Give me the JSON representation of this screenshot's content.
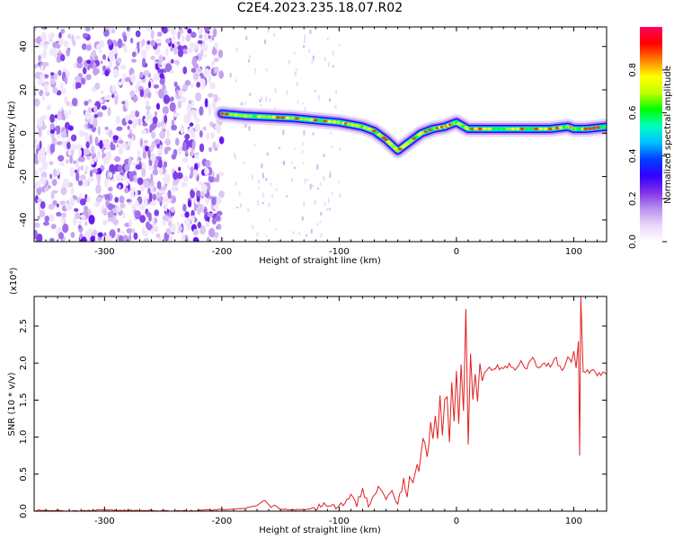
{
  "page": {
    "title": "C2E4.2023.235.18.07.R02"
  },
  "chart_data": [
    {
      "type": "heatmap",
      "panel": "top",
      "xlabel": "Height of straight line (km)",
      "ylabel": "Frequency (Hz)",
      "xlim": [
        -360,
        128
      ],
      "ylim": [
        -50,
        49
      ],
      "xticks": [
        -300,
        -200,
        -100,
        0,
        100
      ],
      "yticks": [
        -40,
        -20,
        0,
        20,
        40
      ],
      "colorbar": {
        "label": "Normalized spectral amplitude",
        "range": [
          0,
          1
        ],
        "ticks": [
          "0.0",
          "0.2",
          "0.4",
          "0.6",
          "0.8"
        ],
        "tick_values": [
          0,
          0.2,
          0.4,
          0.6,
          0.8
        ],
        "colormap": [
          "#ffffff",
          "#e8d8f8",
          "#b890ee",
          "#8030e8",
          "#3000ff",
          "#0040ff",
          "#00c0ff",
          "#00ffc0",
          "#00ff00",
          "#c0ff00",
          "#ffff00",
          "#ff8000",
          "#ff0000",
          "#ff0060"
        ]
      },
      "noise_region_x": [
        -360,
        -200
      ],
      "signal_trace": {
        "x": [
          -200,
          -180,
          -160,
          -140,
          -120,
          -100,
          -90,
          -80,
          -70,
          -60,
          -50,
          -40,
          -30,
          -20,
          -10,
          -5,
          0,
          10,
          20,
          40,
          60,
          80,
          95,
          100,
          110,
          128
        ],
        "y": [
          9,
          8,
          7.5,
          7,
          6,
          5,
          4,
          3,
          1,
          -3,
          -8,
          -4,
          0,
          2,
          3,
          4,
          5,
          2,
          2,
          2,
          2,
          2,
          3,
          2,
          2,
          3
        ]
      }
    },
    {
      "type": "line",
      "panel": "bottom",
      "xlabel": "Height of straight line (km)",
      "ylabel": "SNR (10 * v/v)",
      "y_multiplier": "(x10⁴)",
      "xlim": [
        -360,
        128
      ],
      "ylim": [
        0,
        2.9
      ],
      "xticks": [
        -300,
        -200,
        -100,
        0,
        100
      ],
      "yticks": [
        "0.0",
        "0.5",
        "1.0",
        "1.5",
        "2.0",
        "2.5"
      ],
      "ytick_values": [
        0,
        0.5,
        1.0,
        1.5,
        2.0,
        2.5
      ],
      "color": "#e02020",
      "series": [
        {
          "x": [
            -360,
            -340,
            -320,
            -300,
            -280,
            -260,
            -240,
            -220,
            -200,
            -180,
            -170,
            -163,
            -158,
            -155,
            -150,
            -140,
            -130,
            -120,
            -110,
            -100,
            -95,
            -90,
            -85,
            -80,
            -75,
            -70,
            -65,
            -60,
            -55,
            -50,
            -45,
            -42,
            -40,
            -37,
            -35,
            -32,
            -30,
            -27,
            -25,
            -22,
            -20,
            -18,
            -16,
            -14,
            -12,
            -10,
            -8,
            -6,
            -4,
            -2,
            0,
            2,
            4,
            6,
            8,
            10,
            12,
            14,
            16,
            18,
            20,
            22,
            24,
            26,
            28,
            30,
            35,
            40,
            45,
            50,
            55,
            60,
            65,
            70,
            75,
            80,
            85,
            90,
            95,
            98,
            100,
            102,
            104,
            105,
            106,
            108,
            110,
            115,
            120,
            128
          ],
          "y": [
            0.01,
            0.01,
            0.0,
            0.02,
            0.01,
            0.01,
            0.0,
            0.01,
            0.02,
            0.04,
            0.08,
            0.15,
            0.05,
            0.08,
            0.03,
            0.02,
            0.02,
            0.05,
            0.1,
            0.05,
            0.15,
            0.2,
            0.08,
            0.3,
            0.1,
            0.25,
            0.35,
            0.15,
            0.25,
            0.1,
            0.4,
            0.2,
            0.5,
            0.3,
            0.6,
            0.45,
            0.8,
            1.0,
            0.7,
            1.1,
            1.0,
            1.3,
            0.9,
            1.5,
            1.0,
            1.4,
            1.6,
            0.9,
            1.7,
            1.2,
            1.8,
            1.1,
            2.0,
            1.3,
            2.65,
            1.0,
            2.2,
            1.5,
            1.9,
            1.6,
            2.1,
            1.8,
            1.9,
            1.85,
            1.95,
            1.9,
            1.95,
            1.92,
            2.0,
            1.9,
            2.0,
            1.95,
            2.05,
            1.9,
            2.0,
            1.95,
            2.05,
            1.9,
            2.1,
            2.0,
            2.2,
            1.9,
            2.3,
            0.75,
            2.9,
            1.9,
            1.88,
            1.9,
            1.85,
            1.85
          ]
        }
      ]
    }
  ]
}
